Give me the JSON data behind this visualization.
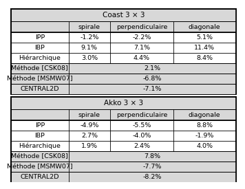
{
  "coast_title": "Coast 3 × 3",
  "akko_title": "Akko 3 × 3",
  "col_headers": [
    "spirale",
    "perpendiculaire",
    "diagonale"
  ],
  "row_labels": [
    "IPP",
    "IBP",
    "Hiérarchique"
  ],
  "coast_data": [
    [
      "-1.2%",
      "-2.2%",
      "5.1%"
    ],
    [
      "9.1%",
      "7.1%",
      "11.4%"
    ],
    [
      "3.0%",
      "4.4%",
      "8.4%"
    ]
  ],
  "coast_single": [
    [
      "Méthode [CSK08]",
      "2.1%"
    ],
    [
      "Méthode [MSMW07]",
      "-6.8%"
    ],
    [
      "CENTRAL2D",
      "-7.1%"
    ]
  ],
  "akko_data": [
    [
      "-4.9%",
      "-5.5%",
      "8.8%"
    ],
    [
      "2.7%",
      "-4.0%",
      "-1.9%"
    ],
    [
      "1.9%",
      "2.4%",
      "4.0%"
    ]
  ],
  "akko_single": [
    [
      "Méthode [CSK08]",
      "7.8%"
    ],
    [
      "Méthode [MSMW07]",
      "-7.7%"
    ],
    [
      "CENTRAL2D",
      "-8.2%"
    ]
  ],
  "gray_bg": "#d8d8d8",
  "white_bg": "#ffffff",
  "font_size": 6.8,
  "title_font_size": 7.5,
  "lw_outer": 1.2,
  "lw_inner": 0.6
}
